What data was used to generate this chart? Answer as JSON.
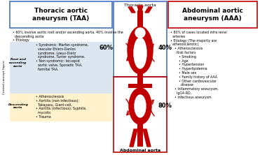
{
  "title_left": "Thoracic aortic\naneurysm (TAA)",
  "title_right": "Abdominal aortic\naneurysm (AAA)",
  "center_top_label": "Thoracic aorta",
  "center_bottom_label": "Abdominal aorta",
  "pct_40": "40%",
  "pct_60": "60%",
  "pct_80": "80%",
  "vertical_label": "Central concept figure",
  "bg_color": "#ffffff",
  "left_box_color": "#4472c4",
  "right_box_color": "#c00000",
  "left_bg_blue": "#dce6f1",
  "left_bg_yellow": "#fff2cc",
  "aorta_color": "#c00000",
  "text_color": "#000000",
  "fig_w": 3.71,
  "fig_h": 2.22,
  "dpi": 100
}
